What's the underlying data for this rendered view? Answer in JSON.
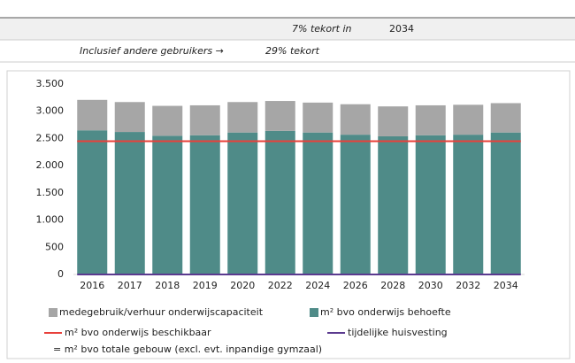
{
  "header": {
    "deficit_text": "7%  tekort in",
    "deficit_year": "2034",
    "incl_text": "Inclusief andere gebruikers →",
    "incl_deficit": "29%  tekort"
  },
  "chart_data": {
    "type": "bar",
    "stacked": true,
    "categories": [
      "2016",
      "2017",
      "2018",
      "2019",
      "2020",
      "2022",
      "2024",
      "2026",
      "2028",
      "2030",
      "2032",
      "2034"
    ],
    "series": [
      {
        "name": "m² bvo onderwijs behoefte",
        "color": "#4f8b88",
        "type": "bar",
        "values": [
          2650,
          2620,
          2550,
          2560,
          2610,
          2640,
          2610,
          2570,
          2540,
          2560,
          2570,
          2610
        ]
      },
      {
        "name": "medegebruik/verhuur onderwijscapaciteit",
        "color": "#a6a6a6",
        "type": "bar",
        "values": [
          560,
          550,
          550,
          550,
          560,
          550,
          550,
          560,
          550,
          550,
          550,
          540
        ]
      },
      {
        "name": "m² bvo onderwijs beschikbaar",
        "color": "#e8403a",
        "type": "line",
        "values": [
          2450,
          2450,
          2450,
          2450,
          2450,
          2450,
          2450,
          2450,
          2450,
          2450,
          2450,
          2450
        ]
      },
      {
        "name": "tijdelijke huisvesting",
        "color": "#5b3a8f",
        "type": "line",
        "values": [
          0,
          0,
          0,
          0,
          0,
          0,
          0,
          0,
          0,
          0,
          0,
          0
        ]
      }
    ],
    "ylim": [
      0,
      3500
    ],
    "yticks": [
      0,
      500,
      {
        "value": 1000,
        "label": "1.000"
      },
      {
        "value": 1500,
        "label": "1.500"
      },
      {
        "value": 2000,
        "label": "2.000"
      },
      {
        "value": 2500,
        "label": "2.500"
      },
      {
        "value": 3000,
        "label": "3.000"
      },
      {
        "value": 3500,
        "label": "3.500"
      }
    ],
    "note": "= m² bvo totale gebouw (excl. evt. inpandige gymzaal)"
  }
}
